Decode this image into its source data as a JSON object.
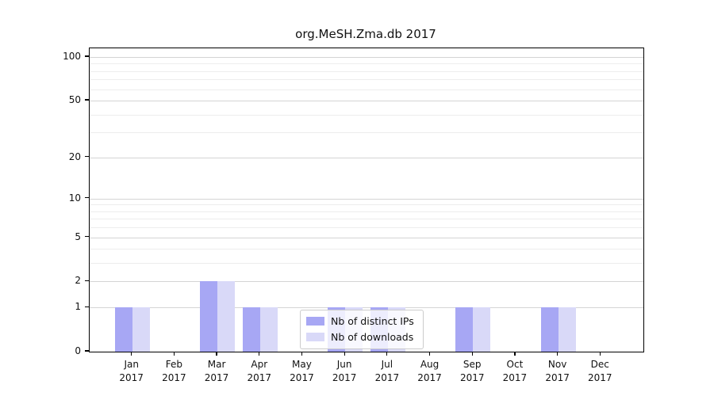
{
  "chart_data": {
    "type": "bar",
    "title": "org.MeSH.Zma.db 2017",
    "xlabel": "",
    "ylabel": "",
    "categories": [
      "Jan",
      "Feb",
      "Mar",
      "Apr",
      "May",
      "Jun",
      "Jul",
      "Aug",
      "Sep",
      "Oct",
      "Nov",
      "Dec"
    ],
    "x_tick_year": "2017",
    "series": [
      {
        "name": "Nb of distinct IPs",
        "color": "#a7a7f4",
        "values": [
          1,
          0,
          2,
          1,
          0,
          1,
          1,
          0,
          1,
          0,
          1,
          0
        ]
      },
      {
        "name": "Nb of downloads",
        "color": "#d9d9f8",
        "values": [
          1,
          0,
          2,
          1,
          0,
          1,
          1,
          0,
          1,
          0,
          1,
          0
        ]
      }
    ],
    "y_scale": "log1p",
    "ylim": [
      0,
      115
    ],
    "y_major_ticks": [
      0,
      1,
      2,
      5,
      10,
      20,
      50,
      100
    ],
    "y_minor_gridlines": [
      3,
      4,
      6,
      7,
      8,
      9,
      30,
      40,
      60,
      70,
      80,
      90
    ],
    "grid": true,
    "legend_position": "lower center inside",
    "colors": {
      "major_gridline": "#d4d4d4",
      "minor_gridline": "#ededed",
      "spine": "#000000",
      "background": "#ffffff"
    }
  }
}
